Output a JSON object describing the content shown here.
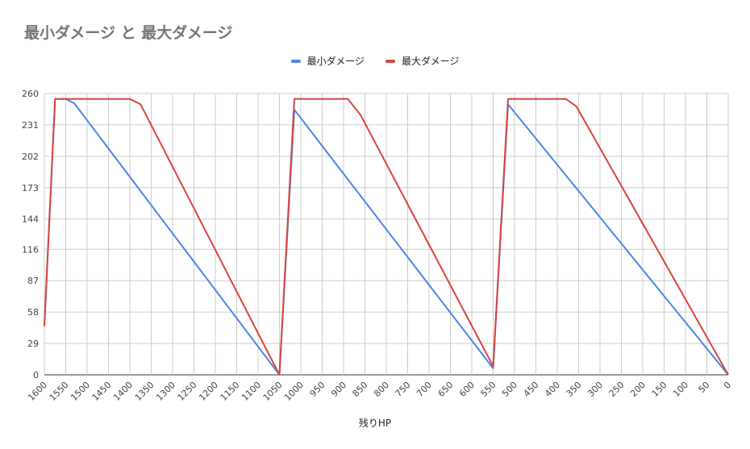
{
  "chart_data": {
    "type": "line",
    "title": "最小ダメージ と 最大ダメージ",
    "xlabel": "残りHP",
    "ylabel": "",
    "legend_position": "top",
    "grid": true,
    "x_reversed": true,
    "xlim": [
      0,
      1600
    ],
    "ylim": [
      0,
      260
    ],
    "yticks": [
      0,
      29,
      58,
      87,
      116,
      144,
      173,
      202,
      231,
      260
    ],
    "xticks": [
      1600,
      1550,
      1500,
      1450,
      1400,
      1350,
      1300,
      1250,
      1200,
      1150,
      1100,
      1050,
      1000,
      950,
      900,
      850,
      800,
      750,
      700,
      650,
      600,
      550,
      500,
      450,
      400,
      350,
      300,
      250,
      200,
      150,
      100,
      50,
      0
    ],
    "series": [
      {
        "name": "最小ダメージ",
        "color": "#4a86e8",
        "points": [
          [
            1600,
            45
          ],
          [
            1575,
            255
          ],
          [
            1550,
            255
          ],
          [
            1530,
            251
          ],
          [
            1050,
            0
          ],
          [
            1015,
            245
          ],
          [
            550,
            6
          ],
          [
            515,
            250
          ],
          [
            0,
            0
          ]
        ]
      },
      {
        "name": "最大ダメージ",
        "color": "#d9443b",
        "points": [
          [
            1600,
            45
          ],
          [
            1575,
            255
          ],
          [
            1400,
            255
          ],
          [
            1375,
            250
          ],
          [
            1050,
            0
          ],
          [
            1015,
            255
          ],
          [
            890,
            255
          ],
          [
            860,
            240
          ],
          [
            550,
            8
          ],
          [
            515,
            255
          ],
          [
            380,
            255
          ],
          [
            355,
            248
          ],
          [
            0,
            0
          ]
        ]
      }
    ]
  }
}
